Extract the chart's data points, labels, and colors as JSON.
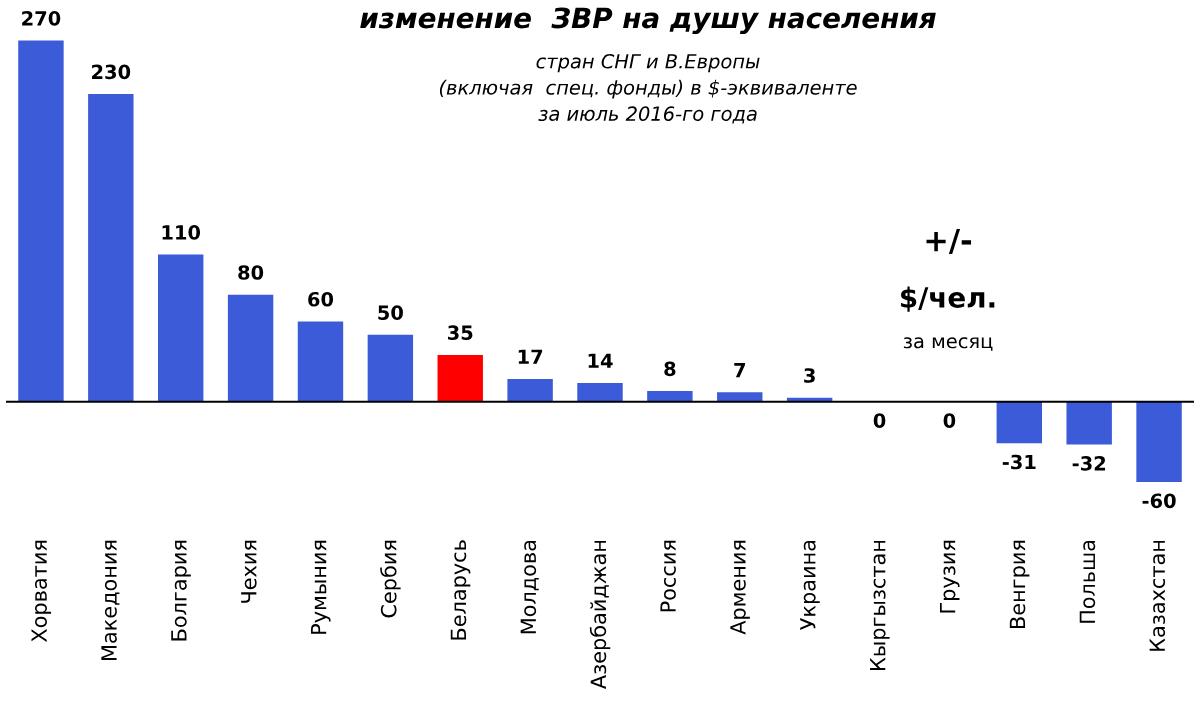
{
  "chart_data": {
    "type": "bar",
    "title": "изменение  ЗВР на душу населения",
    "subtitle": "стран СНГ и В.Европы\n(включая  спец. фонды) в $-эквиваленте\nза июль 2016-го года",
    "categories": [
      "Хорватия",
      "Македония",
      "Болгария",
      "Чехия",
      "Румыния",
      "Сербия",
      "Беларусь",
      "Молдова",
      "Азербайджан",
      "Россия",
      "Армения",
      "Украина",
      "Кыргызстан",
      "Грузия",
      "Венгрия",
      "Польша",
      "Казахстан"
    ],
    "values": [
      270,
      230,
      110,
      80,
      60,
      50,
      35,
      17,
      14,
      8,
      7,
      3,
      0,
      0,
      -31,
      -32,
      -60
    ],
    "colors": [
      "#3b5bd9",
      "#3b5bd9",
      "#3b5bd9",
      "#3b5bd9",
      "#3b5bd9",
      "#3b5bd9",
      "#ff0000",
      "#3b5bd9",
      "#3b5bd9",
      "#3b5bd9",
      "#3b5bd9",
      "#3b5bd9",
      "#3b5bd9",
      "#3b5bd9",
      "#3b5bd9",
      "#3b5bd9",
      "#3b5bd9"
    ],
    "data_labels": true,
    "annotations": [
      "+/-",
      "$/чел.",
      "за месяц"
    ]
  }
}
